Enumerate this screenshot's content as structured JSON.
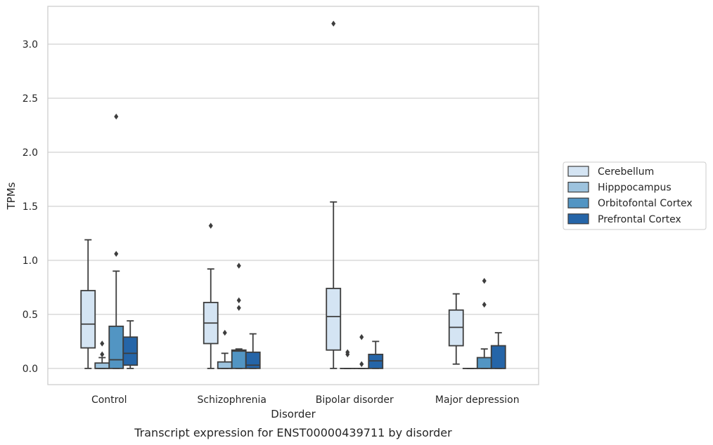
{
  "chart_data": {
    "type": "boxplot",
    "caption": "Transcript expression for ENST00000439711 by disorder",
    "xlabel": "Disorder",
    "ylabel": "TPMs",
    "ylim": [
      -0.15,
      3.35
    ],
    "yticks": [
      "0.0",
      "0.5",
      "1.0",
      "1.5",
      "2.0",
      "2.5",
      "3.0"
    ],
    "grid": "horizontal",
    "legend_position": "right",
    "categories": [
      "Control",
      "Schizophrenia",
      "Bipolar disorder",
      "Major depression"
    ],
    "series": [
      {
        "name": "Cerebellum",
        "color": "#d4e4f3",
        "boxes": [
          {
            "whisker_low": 0.0,
            "q1": 0.19,
            "median": 0.41,
            "q3": 0.72,
            "whisker_high": 1.19,
            "outliers": []
          },
          {
            "whisker_low": 0.0,
            "q1": 0.23,
            "median": 0.42,
            "q3": 0.61,
            "whisker_high": 0.92,
            "outliers": [
              1.32
            ]
          },
          {
            "whisker_low": 0.0,
            "q1": 0.17,
            "median": 0.48,
            "q3": 0.74,
            "whisker_high": 1.54,
            "outliers": [
              3.19
            ]
          },
          {
            "whisker_low": 0.04,
            "q1": 0.21,
            "median": 0.38,
            "q3": 0.54,
            "whisker_high": 0.69,
            "outliers": []
          }
        ]
      },
      {
        "name": "Hipppocampus",
        "color": "#9dc3de",
        "boxes": [
          {
            "whisker_low": 0.0,
            "q1": 0.0,
            "median": 0.0,
            "q3": 0.05,
            "whisker_high": 0.1,
            "outliers": [
              0.13,
              0.23
            ]
          },
          {
            "whisker_low": 0.0,
            "q1": 0.0,
            "median": 0.0,
            "q3": 0.06,
            "whisker_high": 0.14,
            "outliers": [
              0.33
            ]
          },
          {
            "whisker_low": 0.0,
            "q1": 0.0,
            "median": 0.0,
            "q3": 0.0,
            "whisker_high": 0.0,
            "outliers": [
              0.13,
              0.15
            ]
          },
          {
            "whisker_low": 0.0,
            "q1": 0.0,
            "median": 0.0,
            "q3": 0.0,
            "whisker_high": 0.0,
            "outliers": []
          }
        ]
      },
      {
        "name": "Orbitofontal Cortex",
        "color": "#5295c3",
        "boxes": [
          {
            "whisker_low": 0.0,
            "q1": 0.0,
            "median": 0.08,
            "q3": 0.39,
            "whisker_high": 0.9,
            "outliers": [
              1.06,
              2.33
            ]
          },
          {
            "whisker_low": 0.0,
            "q1": 0.0,
            "median": 0.16,
            "q3": 0.17,
            "whisker_high": 0.18,
            "outliers": [
              0.56,
              0.63,
              0.95
            ]
          },
          {
            "whisker_low": 0.0,
            "q1": 0.0,
            "median": 0.0,
            "q3": 0.0,
            "whisker_high": 0.0,
            "outliers": [
              0.04,
              0.29
            ]
          },
          {
            "whisker_low": 0.0,
            "q1": 0.0,
            "median": 0.0,
            "q3": 0.1,
            "whisker_high": 0.18,
            "outliers": [
              0.59,
              0.81
            ]
          }
        ]
      },
      {
        "name": "Prefrontal Cortex",
        "color": "#2565a8",
        "boxes": [
          {
            "whisker_low": 0.0,
            "q1": 0.03,
            "median": 0.14,
            "q3": 0.29,
            "whisker_high": 0.44,
            "outliers": []
          },
          {
            "whisker_low": 0.0,
            "q1": 0.0,
            "median": 0.03,
            "q3": 0.15,
            "whisker_high": 0.32,
            "outliers": []
          },
          {
            "whisker_low": 0.0,
            "q1": 0.0,
            "median": 0.07,
            "q3": 0.13,
            "whisker_high": 0.25,
            "outliers": []
          },
          {
            "whisker_low": 0.0,
            "q1": 0.0,
            "median": 0.0,
            "q3": 0.21,
            "whisker_high": 0.33,
            "outliers": []
          }
        ]
      }
    ]
  }
}
